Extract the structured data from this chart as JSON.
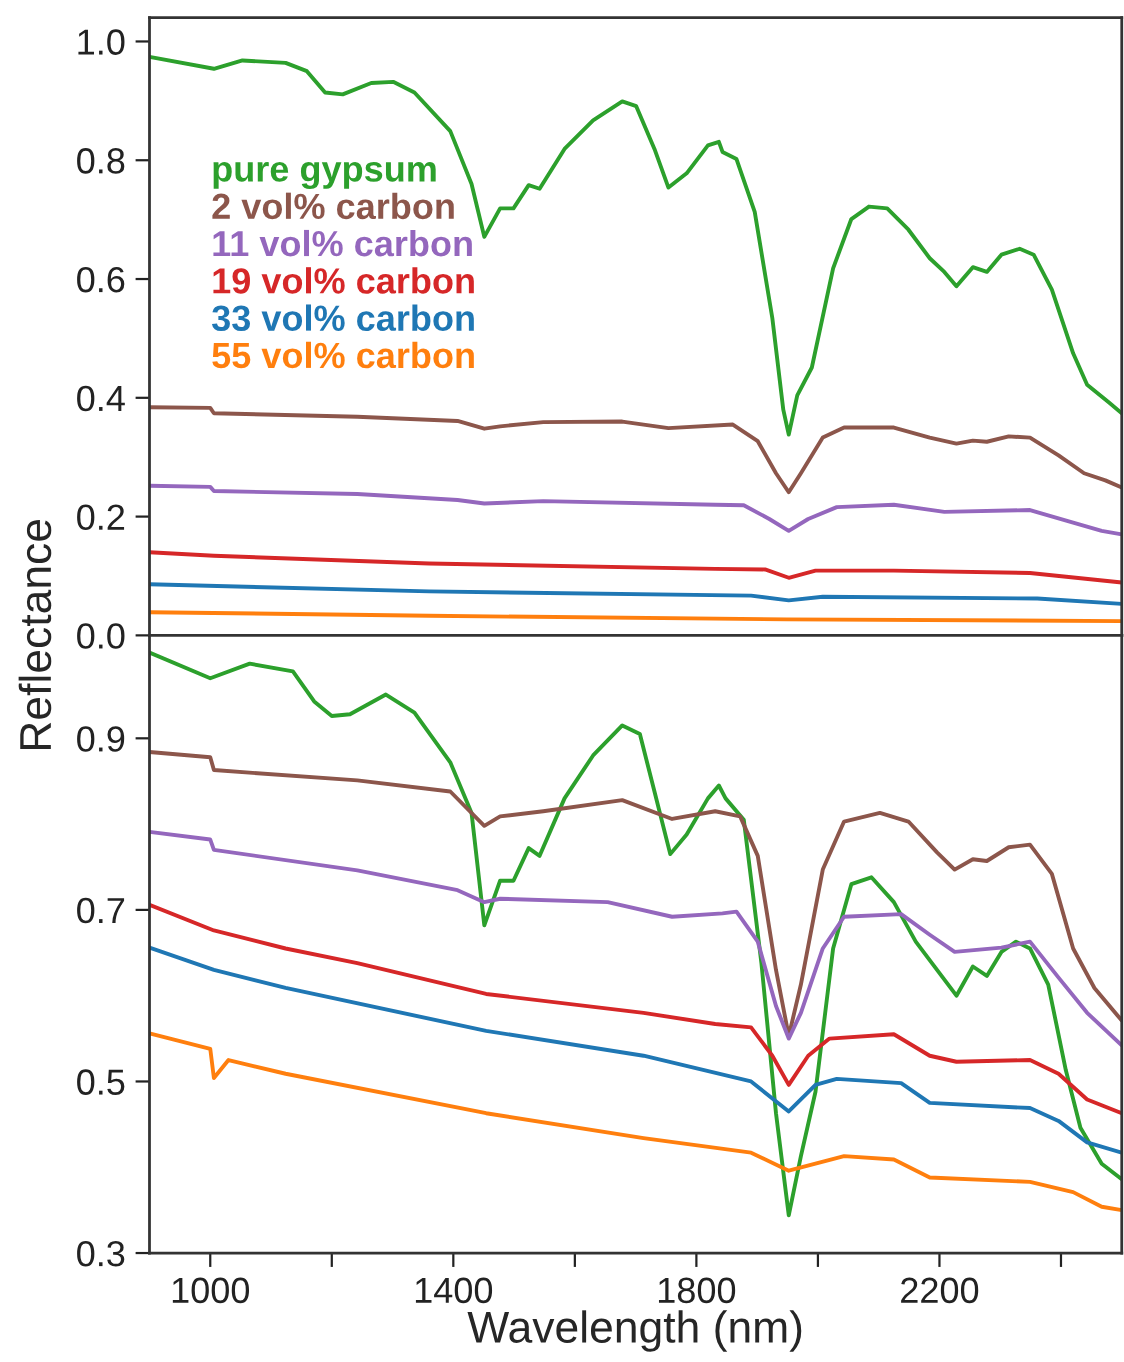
{
  "chart_data": [
    {
      "type": "line",
      "ylabel": "Reflectance",
      "xlim": [
        900,
        2500
      ],
      "ylim": [
        0,
        1.04
      ],
      "yticks": [
        {
          "value": 0,
          "label": "0.0"
        },
        0.2,
        0.4,
        0.6,
        0.8,
        {
          "value": 1,
          "label": "1.0"
        }
      ],
      "tick_labels": "y",
      "legend": "top left",
      "grid": false,
      "series": [
        {
          "name": "pure gypsum",
          "color": "#2ca02c",
          "x": [
            900,
            1006,
            1053,
            1124,
            1159,
            1189,
            1218,
            1265,
            1301,
            1336,
            1395,
            1430,
            1451,
            1477,
            1499,
            1524,
            1542,
            1583,
            1630,
            1678,
            1701,
            1731,
            1754,
            1784,
            1819,
            1837,
            1843,
            1866,
            1896,
            1925,
            1943,
            1952,
            1966,
            1990,
            2025,
            2055,
            2084,
            2114,
            2149,
            2184,
            2208,
            2228,
            2255,
            2278,
            2302,
            2332,
            2355,
            2385,
            2420,
            2443,
            2479,
            2500
          ],
          "values": [
            0.974,
            0.954,
            0.968,
            0.964,
            0.95,
            0.914,
            0.911,
            0.93,
            0.932,
            0.914,
            0.849,
            0.76,
            0.671,
            0.719,
            0.719,
            0.758,
            0.752,
            0.819,
            0.867,
            0.899,
            0.891,
            0.819,
            0.754,
            0.778,
            0.825,
            0.831,
            0.814,
            0.802,
            0.713,
            0.534,
            0.38,
            0.338,
            0.404,
            0.451,
            0.618,
            0.701,
            0.722,
            0.719,
            0.683,
            0.635,
            0.612,
            0.588,
            0.62,
            0.612,
            0.641,
            0.651,
            0.641,
            0.582,
            0.475,
            0.422,
            0.392,
            0.374
          ]
        },
        {
          "name": "2 vol% carbon",
          "color": "#8c564b",
          "x": [
            900,
            1000,
            1006,
            1242,
            1407,
            1451,
            1477,
            1548,
            1678,
            1754,
            1860,
            1901,
            1931,
            1952,
            1972,
            2008,
            2043,
            2125,
            2184,
            2228,
            2255,
            2278,
            2314,
            2349,
            2396,
            2438,
            2473,
            2500
          ],
          "values": [
            0.384,
            0.383,
            0.374,
            0.368,
            0.361,
            0.348,
            0.352,
            0.359,
            0.36,
            0.349,
            0.355,
            0.327,
            0.273,
            0.241,
            0.273,
            0.333,
            0.35,
            0.35,
            0.333,
            0.323,
            0.328,
            0.326,
            0.335,
            0.333,
            0.303,
            0.273,
            0.261,
            0.249
          ]
        },
        {
          "name": "11 vol% carbon",
          "color": "#9467bd",
          "x": [
            900,
            1000,
            1006,
            1242,
            1407,
            1451,
            1548,
            1831,
            1878,
            1920,
            1952,
            1984,
            2031,
            2125,
            2208,
            2349,
            2420,
            2467,
            2500
          ],
          "values": [
            0.252,
            0.25,
            0.243,
            0.238,
            0.228,
            0.222,
            0.226,
            0.22,
            0.219,
            0.196,
            0.176,
            0.196,
            0.216,
            0.22,
            0.208,
            0.211,
            0.19,
            0.176,
            0.17
          ]
        },
        {
          "name": "19 vol% carbon",
          "color": "#d62728",
          "x": [
            900,
            1006,
            1360,
            1831,
            1913,
            1952,
            1996,
            2125,
            2349,
            2500
          ],
          "values": [
            0.14,
            0.134,
            0.121,
            0.112,
            0.111,
            0.097,
            0.109,
            0.109,
            0.105,
            0.089
          ]
        },
        {
          "name": "33 vol% carbon",
          "color": "#1f77b4",
          "x": [
            900,
            1360,
            1890,
            1952,
            2008,
            2361,
            2500
          ],
          "values": [
            0.086,
            0.074,
            0.067,
            0.059,
            0.065,
            0.062,
            0.053
          ]
        },
        {
          "name": "55 vol% carbon",
          "color": "#ff7f0e",
          "x": [
            900,
            1360,
            1949,
            2500
          ],
          "values": [
            0.039,
            0.033,
            0.027,
            0.024
          ]
        }
      ]
    },
    {
      "type": "line",
      "xlabel": "Wavelength (nm)",
      "xlim": [
        900,
        2500
      ],
      "ylim": [
        0.3,
        1.02
      ],
      "yticks": [
        0.3,
        0.5,
        0.7,
        0.9
      ],
      "xticks": [
        1000,
        {
          "value": 1200,
          "label": null
        },
        1400,
        {
          "value": 1600,
          "label": null
        },
        1800,
        {
          "value": 2000,
          "label": null
        },
        2200,
        {
          "value": 2400,
          "label": null
        }
      ],
      "grid": false,
      "series": [
        {
          "color": "#2ca02c",
          "x": [
            900,
            1000,
            1065,
            1136,
            1171,
            1200,
            1230,
            1289,
            1336,
            1395,
            1430,
            1451,
            1477,
            1499,
            1524,
            1542,
            1583,
            1630,
            1678,
            1707,
            1731,
            1757,
            1784,
            1819,
            1837,
            1848,
            1878,
            1907,
            1931,
            1952,
            1972,
            1996,
            2025,
            2055,
            2088,
            2125,
            2161,
            2196,
            2228,
            2255,
            2278,
            2302,
            2326,
            2349,
            2379,
            2408,
            2432,
            2467,
            2500
          ],
          "values": [
            1.0,
            0.97,
            0.987,
            0.978,
            0.943,
            0.926,
            0.928,
            0.951,
            0.93,
            0.872,
            0.813,
            0.682,
            0.734,
            0.734,
            0.772,
            0.763,
            0.83,
            0.88,
            0.915,
            0.905,
            0.838,
            0.765,
            0.788,
            0.83,
            0.845,
            0.83,
            0.805,
            0.638,
            0.463,
            0.344,
            0.413,
            0.488,
            0.655,
            0.73,
            0.738,
            0.709,
            0.663,
            0.63,
            0.6,
            0.634,
            0.623,
            0.651,
            0.663,
            0.655,
            0.613,
            0.513,
            0.446,
            0.404,
            0.386
          ]
        },
        {
          "color": "#8c564b",
          "x": [
            900,
            1000,
            1006,
            1242,
            1395,
            1451,
            1477,
            1548,
            1678,
            1760,
            1831,
            1872,
            1901,
            1931,
            1952,
            1972,
            2008,
            2043,
            2102,
            2149,
            2196,
            2225,
            2255,
            2278,
            2314,
            2349,
            2385,
            2420,
            2455,
            2500
          ],
          "values": [
            0.884,
            0.878,
            0.863,
            0.851,
            0.838,
            0.798,
            0.809,
            0.815,
            0.828,
            0.806,
            0.815,
            0.809,
            0.763,
            0.63,
            0.553,
            0.613,
            0.747,
            0.803,
            0.813,
            0.803,
            0.767,
            0.747,
            0.759,
            0.757,
            0.773,
            0.776,
            0.742,
            0.655,
            0.609,
            0.571
          ]
        },
        {
          "color": "#9467bd",
          "x": [
            900,
            1000,
            1006,
            1242,
            1407,
            1451,
            1477,
            1654,
            1760,
            1843,
            1866,
            1901,
            1931,
            1952,
            1972,
            2008,
            2043,
            2137,
            2184,
            2225,
            2302,
            2349,
            2396,
            2443,
            2500
          ],
          "values": [
            0.791,
            0.782,
            0.77,
            0.746,
            0.723,
            0.709,
            0.713,
            0.709,
            0.692,
            0.696,
            0.698,
            0.663,
            0.588,
            0.55,
            0.58,
            0.655,
            0.692,
            0.695,
            0.671,
            0.651,
            0.656,
            0.663,
            0.621,
            0.58,
            0.542
          ]
        },
        {
          "color": "#d62728",
          "x": [
            900,
            1006,
            1124,
            1242,
            1454,
            1713,
            1831,
            1890,
            1925,
            1952,
            1984,
            2019,
            2125,
            2184,
            2228,
            2349,
            2396,
            2443,
            2500
          ],
          "values": [
            0.706,
            0.676,
            0.655,
            0.638,
            0.602,
            0.58,
            0.567,
            0.563,
            0.53,
            0.496,
            0.53,
            0.55,
            0.555,
            0.53,
            0.523,
            0.525,
            0.509,
            0.479,
            0.463
          ]
        },
        {
          "color": "#1f77b4",
          "x": [
            900,
            1006,
            1124,
            1454,
            1713,
            1890,
            1952,
            1996,
            2031,
            2137,
            2184,
            2349,
            2396,
            2443,
            2500
          ],
          "values": [
            0.656,
            0.63,
            0.609,
            0.559,
            0.53,
            0.5,
            0.465,
            0.496,
            0.503,
            0.498,
            0.475,
            0.469,
            0.454,
            0.429,
            0.417
          ]
        },
        {
          "color": "#ff7f0e",
          "x": [
            900,
            1000,
            1006,
            1030,
            1124,
            1454,
            1713,
            1890,
            1952,
            2043,
            2125,
            2184,
            2349,
            2420,
            2467,
            2500
          ],
          "values": [
            0.556,
            0.538,
            0.504,
            0.525,
            0.509,
            0.463,
            0.434,
            0.417,
            0.396,
            0.413,
            0.409,
            0.388,
            0.383,
            0.371,
            0.354,
            0.35
          ]
        }
      ]
    }
  ]
}
